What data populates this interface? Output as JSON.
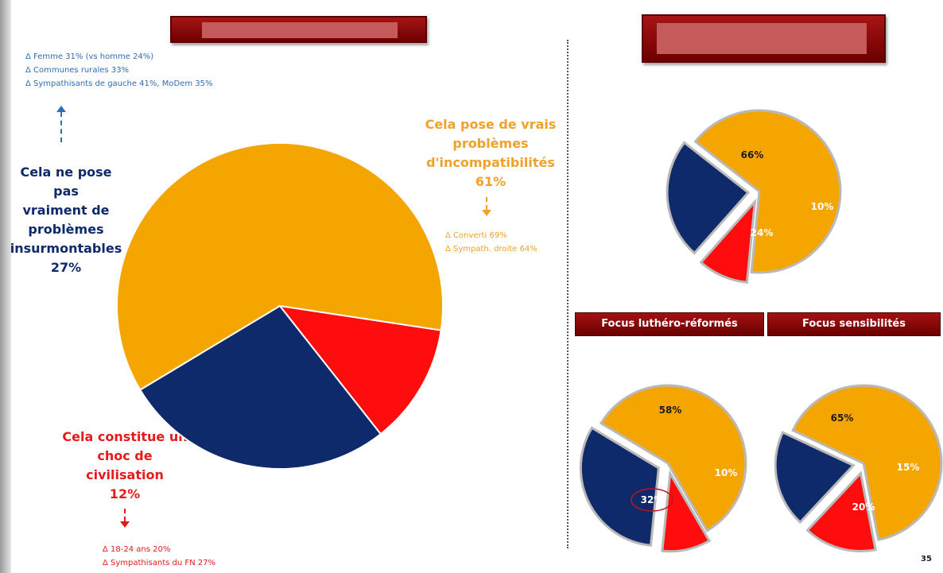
{
  "colors": {
    "navy": "#0e2a6b",
    "orange": "#f5a500",
    "red": "#ff0d0d",
    "dark_red": "#8b0000",
    "blue_text": "#2f6db4",
    "orange_text": "#f0a12b",
    "red_text": "#e51b1b"
  },
  "left": {
    "annotation_top": [
      "Δ  Femme 31% (vs homme 24%)",
      "Δ  Communes rurales 33%",
      "Δ  Sympathisants de gauche  41%, MoDem 35%"
    ],
    "label_navy": [
      "Cela ne pose pas",
      "vraiment de",
      "problèmes",
      "insurmontables",
      "27%"
    ],
    "label_orange": [
      "Cela pose de vrais",
      "problèmes",
      "d'incompatibilités",
      "61%"
    ],
    "annotation_orange": [
      "Δ   Converti 69%",
      "Δ   Sympath.  droite  64%"
    ],
    "label_red": [
      "Cela constitue un",
      "choc de",
      "civilisation",
      "12%"
    ],
    "annotation_red": [
      "Δ  18-24 ans 20%",
      "Δ  Sympathisants du FN 27%"
    ]
  },
  "tabs": {
    "lutheran": "Focus luthéro-réformés",
    "sensibilites": "Focus sensibilités"
  },
  "page_number": "35",
  "chart_data": [
    {
      "type": "pie",
      "labels": [
        "Cela pose de vrais problèmes d'incompatibilités",
        "Cela constitue un choc de civilisation",
        "Cela ne pose pas vraiment de problèmes insurmontables"
      ],
      "values": [
        61,
        12,
        27
      ],
      "colors": [
        "#f5a500",
        "#ff0d0d",
        "#0e2a6b"
      ],
      "value_labels": [
        "",
        "",
        ""
      ]
    },
    {
      "type": "pie",
      "values": [
        66,
        10,
        24
      ],
      "colors": [
        "#f5a500",
        "#ff0d0d",
        "#0e2a6b"
      ],
      "value_labels": [
        "66%",
        "10%",
        "24%"
      ]
    },
    {
      "type": "pie",
      "title": "Focus luthéro-réformés",
      "values": [
        58,
        10,
        32
      ],
      "colors": [
        "#f5a500",
        "#ff0d0d",
        "#0e2a6b"
      ],
      "value_labels": [
        "58%",
        "10%",
        "32%"
      ]
    },
    {
      "type": "pie",
      "title": "Focus sensibilités",
      "values": [
        65,
        15,
        20
      ],
      "colors": [
        "#f5a500",
        "#ff0d0d",
        "#0e2a6b"
      ],
      "value_labels": [
        "65%",
        "15%",
        "20%"
      ]
    }
  ]
}
